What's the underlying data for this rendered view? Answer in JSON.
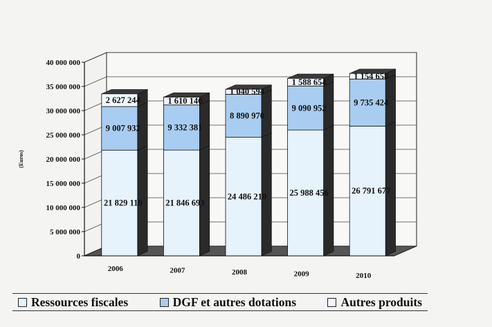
{
  "chart_data": {
    "type": "bar",
    "stacked": true,
    "three_d": true,
    "title": "",
    "xlabel": "",
    "ylabel": "(Euros)",
    "ylim": [
      0,
      40000000
    ],
    "yticks": [
      0,
      5000000,
      10000000,
      15000000,
      20000000,
      25000000,
      30000000,
      35000000,
      40000000
    ],
    "ytick_labels": [
      "0",
      "5 000 000",
      "10 000 000",
      "15 000 000",
      "20 000 000",
      "25 000 000",
      "30 000 000",
      "35 000 000",
      "40 000 000"
    ],
    "categories": [
      "2006",
      "2007",
      "2008",
      "2009",
      "2010"
    ],
    "series": [
      {
        "name": "Ressources fiscales",
        "color": "#e6f2fc",
        "values": [
          21829110,
          21846693,
          24486210,
          25988456,
          26791677
        ],
        "labels": [
          "21 829 110",
          "21 846 693",
          "24 486 210",
          "25 988 456",
          "26 791 677"
        ]
      },
      {
        "name": "DGF et autres dotations",
        "color": "#a9cdf0",
        "values": [
          9007932,
          9332381,
          8890970,
          9090952,
          9735424
        ],
        "labels": [
          "9 007 932",
          "9 332 381",
          "8 890 970",
          "9 090 952",
          "9 735 424"
        ]
      },
      {
        "name": "Autres produits",
        "color": "#eef6fc",
        "values": [
          2627244,
          1610140,
          1040594,
          1588654,
          1154658
        ],
        "labels": [
          "2 627 244",
          "1 610 140",
          "1 040 594",
          "1 588 654",
          "1 154 658"
        ]
      }
    ],
    "grid": true,
    "legend_position": "bottom"
  }
}
